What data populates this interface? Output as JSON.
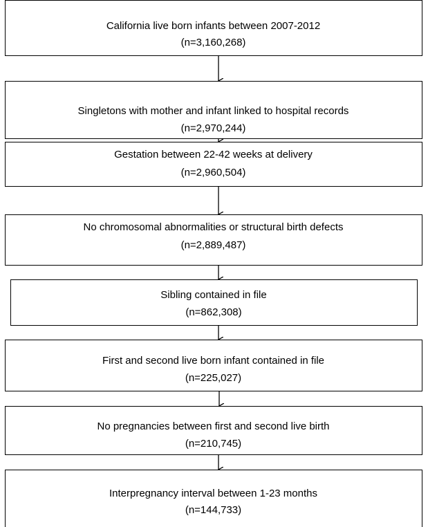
{
  "nodes": [
    {
      "label": "California live born infants between 2007-2012",
      "count": "(n=3,160,268)"
    },
    {
      "label": "Singletons with mother and infant linked to hospital records",
      "count": "(n=2,970,244)"
    },
    {
      "label": "Gestation between 22-42 weeks at delivery",
      "count": "(n=2,960,504)"
    },
    {
      "label": "No chromosomal abnormalities or structural birth defects",
      "count": "(n=2,889,487)"
    },
    {
      "label": "Sibling contained in file",
      "count": "(n=862,308)"
    },
    {
      "label": "First and second live born infant contained in file",
      "count": "(n=225,027)"
    },
    {
      "label": "No pregnancies between first and second live birth",
      "count": "(n=210,745)"
    },
    {
      "label": "Interpregnancy interval between 1-23 months",
      "count": "(n=144,733)"
    }
  ]
}
